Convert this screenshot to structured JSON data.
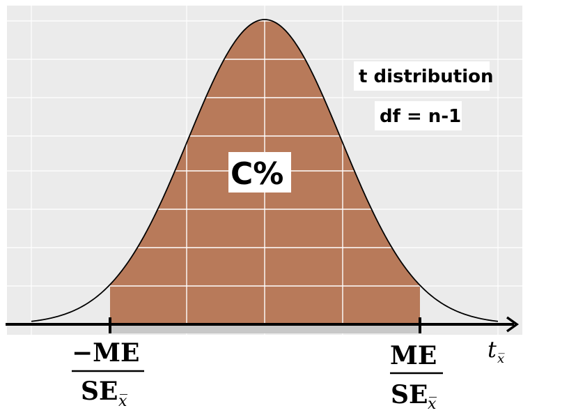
{
  "labels": {
    "distribution_name": "t distribution",
    "degrees_of_freedom": "df = n-1",
    "area": "C%",
    "axis_variable": "t",
    "axis_subscript": "x̅"
  },
  "bounds": {
    "left_numerator": "−ME",
    "left_denominator": "SE",
    "left_denominator_subscript": "x̅",
    "right_numerator": "ME",
    "right_denominator": "SE",
    "right_denominator_subscript": "x̅"
  },
  "colors": {
    "panel_background": "#ebebeb",
    "gridline": "#ffffff",
    "shaded_area": "#b87a5a",
    "curve": "#000000",
    "axis": "#000000"
  }
}
